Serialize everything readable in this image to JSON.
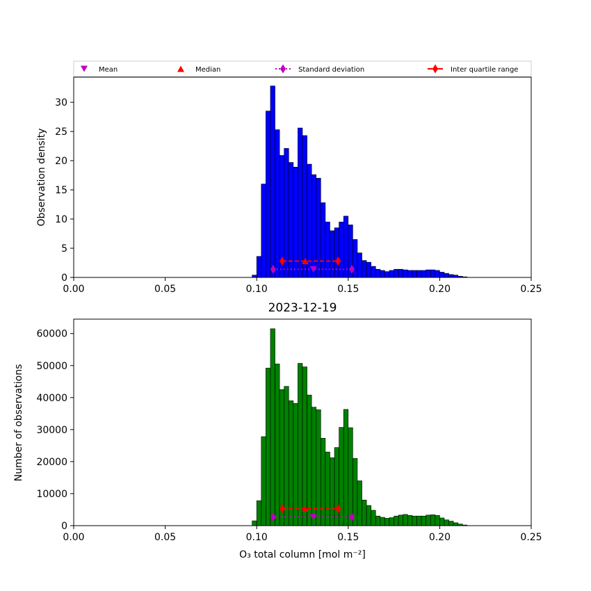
{
  "chart_data": [
    {
      "type": "bar",
      "variant": "histogram",
      "color": "#0000ff",
      "edge_color": "#000000",
      "title": "",
      "xlabel": "",
      "ylabel": "Observation density",
      "xlim": [
        0.0,
        0.25
      ],
      "ylim": [
        0,
        34.3
      ],
      "xticks": [
        "0.00",
        "0.05",
        "0.10",
        "0.15",
        "0.20",
        "0.25"
      ],
      "yticks": [
        "0",
        "5",
        "10",
        "15",
        "20",
        "25",
        "30"
      ],
      "bin_start": 0.0975,
      "bin_width": 0.0025,
      "values": [
        0.4,
        3.6,
        16.0,
        28.5,
        32.8,
        25.3,
        20.9,
        22.1,
        19.7,
        18.9,
        25.6,
        24.3,
        19.4,
        17.6,
        17.0,
        12.8,
        9.5,
        8.0,
        8.5,
        9.5,
        10.5,
        9.0,
        6.5,
        4.2,
        2.9,
        2.6,
        1.9,
        1.4,
        1.2,
        1.0,
        1.2,
        1.4,
        1.4,
        1.3,
        1.2,
        1.2,
        1.2,
        1.2,
        1.3,
        1.3,
        1.2,
        0.9,
        0.7,
        0.5,
        0.4,
        0.2,
        0.1
      ],
      "legend": {
        "placement": "above plot",
        "entries": [
          {
            "label": "Mean",
            "marker": "triangle-down",
            "color": "#bf00bf"
          },
          {
            "label": "Median",
            "marker": "triangle-up",
            "color": "#ff0000"
          },
          {
            "label": "Standard deviation",
            "marker": "diamond",
            "line": "dotted",
            "color": "#bf00bf"
          },
          {
            "label": "Inter quartile range",
            "marker": "diamond",
            "line": "solid",
            "color": "#ff0000"
          }
        ]
      },
      "statistics": {
        "mean": 0.131,
        "median": 0.1265,
        "std_range": [
          0.109,
          0.152
        ],
        "iqr_range": [
          0.114,
          0.1445
        ],
        "mean_y": 1.4,
        "median_y": 2.8,
        "std_y": 1.4,
        "iqr_y": 2.8
      }
    },
    {
      "type": "bar",
      "variant": "histogram",
      "color": "#008000",
      "edge_color": "#000000",
      "title": "2023-12-19",
      "xlabel": "O₃ total column [mol m⁻²]",
      "ylabel": "Number of observations",
      "xlim": [
        0.0,
        0.25
      ],
      "ylim": [
        0,
        64500
      ],
      "xticks": [
        "0.00",
        "0.05",
        "0.10",
        "0.15",
        "0.20",
        "0.25"
      ],
      "yticks": [
        "0",
        "10000",
        "20000",
        "30000",
        "40000",
        "50000",
        "60000"
      ],
      "bin_start": 0.0975,
      "bin_width": 0.0025,
      "values": [
        1500,
        7800,
        27800,
        49200,
        61500,
        50500,
        42500,
        43500,
        39000,
        38200,
        50700,
        49600,
        40800,
        37000,
        36200,
        27300,
        23000,
        21200,
        24400,
        30700,
        36300,
        30600,
        21000,
        14000,
        8000,
        6300,
        4800,
        3000,
        2600,
        2300,
        2500,
        3000,
        3300,
        3500,
        3200,
        3000,
        3000,
        3000,
        3300,
        3400,
        3200,
        2400,
        1800,
        1400,
        900,
        500,
        200
      ],
      "statistics": {
        "mean": 0.131,
        "median": 0.1265,
        "std_range": [
          0.109,
          0.152
        ],
        "iqr_range": [
          0.114,
          0.1445
        ],
        "mean_y": 2700,
        "median_y": 5300,
        "std_y": 2700,
        "iqr_y": 5300
      }
    }
  ]
}
